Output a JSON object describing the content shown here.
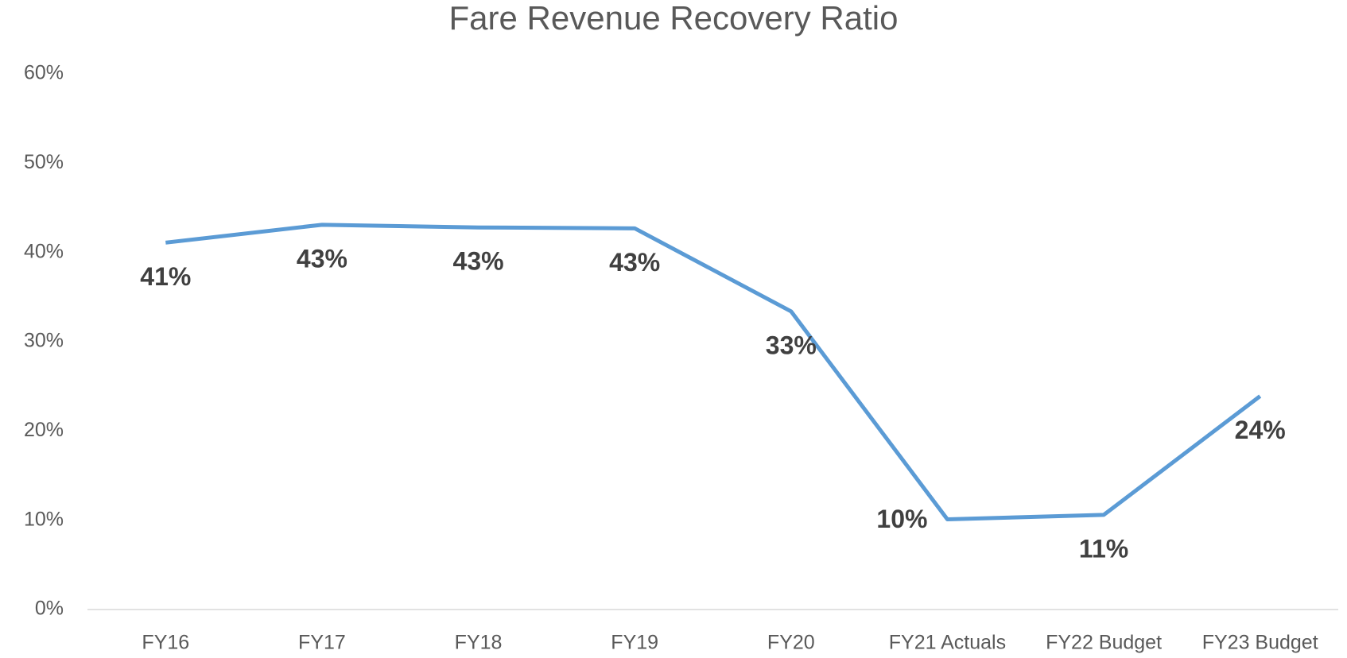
{
  "chart_data": {
    "type": "line",
    "title": "Fare Revenue Recovery Ratio",
    "categories": [
      "FY16",
      "FY17",
      "FY18",
      "FY19",
      "FY20",
      "FY21 Actuals",
      "FY22 Budget",
      "FY23 Budget"
    ],
    "values": [
      41.1,
      43.1,
      42.8,
      42.7,
      33.4,
      10.1,
      10.6,
      23.9
    ],
    "value_labels": [
      "41%",
      "43%",
      "43%",
      "43%",
      "33%",
      "10%",
      "11%",
      "24%"
    ],
    "color": "#5b9bd5",
    "ylim": [
      0,
      60
    ],
    "yticks": [
      {
        "value": 0,
        "label": "0%"
      },
      {
        "value": 10,
        "label": "10%"
      },
      {
        "value": 20,
        "label": "20%"
      },
      {
        "value": 30,
        "label": "30%"
      },
      {
        "value": 40,
        "label": "40%"
      },
      {
        "value": 50,
        "label": "50%"
      },
      {
        "value": 60,
        "label": "60%"
      }
    ],
    "grid": false
  }
}
